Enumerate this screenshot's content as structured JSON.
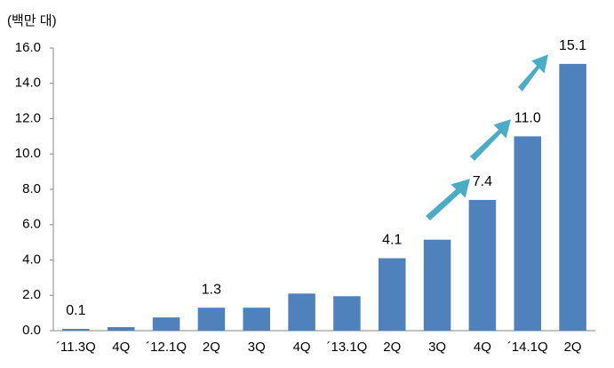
{
  "chart_data": {
    "type": "bar",
    "unit_label": "(백만 대)",
    "categories": [
      "´11.3Q",
      "4Q",
      "´12.1Q",
      "2Q",
      "3Q",
      "4Q",
      "´13.1Q",
      "2Q",
      "3Q",
      "4Q",
      "´14.1Q",
      "2Q"
    ],
    "values": [
      0.1,
      0.2,
      0.75,
      1.3,
      1.3,
      2.1,
      1.95,
      4.1,
      5.15,
      7.4,
      11.0,
      15.1
    ],
    "value_labels": [
      "0.1",
      null,
      null,
      "1.3",
      null,
      null,
      null,
      "4.1",
      null,
      "7.4",
      "11.0",
      "15.1"
    ],
    "color": "#4f81bd",
    "ylim": [
      0,
      16
    ],
    "yticks": [
      {
        "value": 0,
        "label": "0.0"
      },
      {
        "value": 2,
        "label": "2.0"
      },
      {
        "value": 4,
        "label": "4.0"
      },
      {
        "value": 6,
        "label": "6.0"
      },
      {
        "value": 8,
        "label": "8.0"
      },
      {
        "value": 10,
        "label": "10.0"
      },
      {
        "value": 12,
        "label": "12.0"
      },
      {
        "value": 14,
        "label": "14.0"
      },
      {
        "value": 16,
        "label": "16.0"
      }
    ],
    "grid": false
  }
}
